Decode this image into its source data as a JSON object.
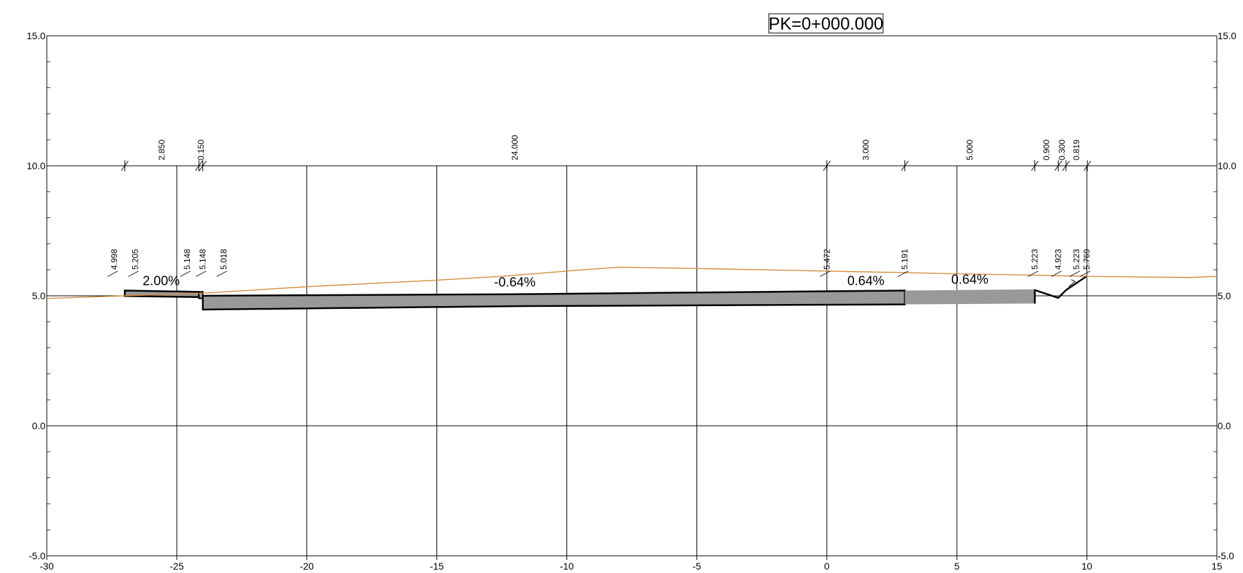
{
  "title": "PK=0+000.000",
  "axes": {
    "x": {
      "min": -30,
      "max": 15,
      "ticks": [
        -30,
        -25,
        -20,
        -15,
        -10,
        -5,
        0,
        5,
        10,
        15
      ],
      "tick_labels": [
        "-30",
        "-25",
        "-20",
        "-15",
        "-10",
        "-5",
        "0",
        "5",
        "10",
        "15"
      ]
    },
    "y": {
      "min": -5,
      "max": 15,
      "ticks": [
        -5,
        0,
        5,
        10,
        15
      ],
      "tick_labels": [
        "-5.0",
        "0.0",
        "5.0",
        "10.0",
        "15.0"
      ]
    }
  },
  "dimension_line": {
    "y": 10,
    "marks_x": [
      -27,
      -24.15,
      -24.0,
      0,
      3,
      8,
      8.9,
      9.2,
      10.019
    ],
    "labels": [
      {
        "text": "2.850",
        "x": -25.575
      },
      {
        "text": "0.150",
        "x": -24.075
      },
      {
        "text": "24.000",
        "x": -12.0
      },
      {
        "text": "3.000",
        "x": 1.5
      },
      {
        "text": "5.000",
        "x": 5.5
      },
      {
        "text": "0.900",
        "x": 8.45
      },
      {
        "text": "0.300",
        "x": 9.05
      },
      {
        "text": "0.819",
        "x": 9.6
      }
    ]
  },
  "elevation_labels": [
    {
      "text": "4.998",
      "x": -27.4
    },
    {
      "text": "5.205",
      "x": -26.6
    },
    {
      "text": "5.148",
      "x": -24.6
    },
    {
      "text": "5.148",
      "x": -24.0
    },
    {
      "text": "5.018",
      "x": -23.2
    },
    {
      "text": "5.472",
      "x": 0.0
    },
    {
      "text": "5.191",
      "x": 3.0
    },
    {
      "text": "5.223",
      "x": 8.0
    },
    {
      "text": "4.923",
      "x": 8.9
    },
    {
      "text": "5.223",
      "x": 9.6
    },
    {
      "text": "5.769",
      "x": 10.0
    }
  ],
  "slopes": [
    {
      "text": "2.00%",
      "x": -25.6,
      "y": 5.25
    },
    {
      "text": "-0.64%",
      "x": -12.0,
      "y": 5.2
    },
    {
      "text": "0.64%",
      "x": 1.5,
      "y": 5.25
    },
    {
      "text": "0.64%",
      "x": 5.5,
      "y": 5.3
    }
  ],
  "terrain": [
    [
      -30,
      4.9
    ],
    [
      -27,
      5.0
    ],
    [
      -24,
      5.1
    ],
    [
      -20,
      5.35
    ],
    [
      -15,
      5.6
    ],
    [
      -12.5,
      5.75
    ],
    [
      -10,
      5.95
    ],
    [
      -8,
      6.1
    ],
    [
      -5,
      6.05
    ],
    [
      0,
      5.95
    ],
    [
      5,
      5.85
    ],
    [
      10,
      5.75
    ],
    [
      14,
      5.7
    ],
    [
      15,
      5.75
    ]
  ],
  "colors": {
    "terrain": "#d08a3a",
    "pavement_fill": "#999999",
    "outline": "#000000",
    "grid": "#000000"
  }
}
